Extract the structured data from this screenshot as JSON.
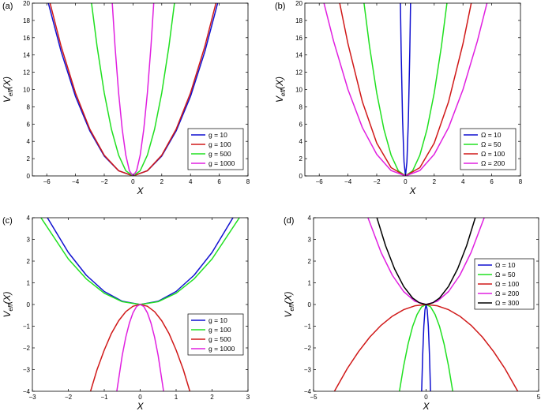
{
  "colors": {
    "blue": "#1010d0",
    "red": "#d01818",
    "green": "#20e020",
    "magenta": "#e020e0",
    "black": "#000000"
  },
  "chart_data": [
    {
      "type": "line",
      "panel_label": "(a)",
      "xlabel": "X",
      "ylabel_main": "V",
      "ylabel_sub": "eff",
      "ylabel_tail": "(X)",
      "xlim": [
        -7,
        8
      ],
      "ylim": [
        0,
        20
      ],
      "xticks": [
        -6,
        -4,
        -2,
        0,
        2,
        4,
        6,
        8
      ],
      "yticks": [
        0,
        2,
        4,
        6,
        8,
        10,
        12,
        14,
        16,
        18,
        20
      ],
      "legend_position": "lower-right",
      "series": [
        {
          "name": "g = 10",
          "color": "blue",
          "x": [
            -6,
            -5,
            -4,
            -3,
            -2,
            -1,
            0,
            1,
            2,
            3,
            4,
            5,
            6
          ],
          "y": [
            20.7,
            14.4,
            9.2,
            5.2,
            2.3,
            0.6,
            0,
            0.6,
            2.3,
            5.2,
            9.2,
            14.4,
            20.7
          ]
        },
        {
          "name": "g = 100",
          "color": "red",
          "x": [
            -5.8,
            -5,
            -4,
            -3,
            -2,
            -1,
            0,
            1,
            2,
            3,
            4,
            5,
            5.8
          ],
          "y": [
            20.2,
            15.0,
            9.6,
            5.4,
            2.4,
            0.6,
            0,
            0.6,
            2.4,
            5.4,
            9.6,
            15.0,
            20.2
          ]
        },
        {
          "name": "g = 500",
          "color": "green",
          "x": [
            -2.9,
            -2.5,
            -2,
            -1.5,
            -1,
            -0.5,
            0,
            0.5,
            1,
            1.5,
            2,
            2.5,
            2.9
          ],
          "y": [
            20.2,
            15.0,
            9.6,
            5.4,
            2.4,
            0.6,
            0,
            0.6,
            2.4,
            5.4,
            9.6,
            15.0,
            20.2
          ]
        },
        {
          "name": "g = 1000",
          "color": "magenta",
          "x": [
            -1.45,
            -1.25,
            -1,
            -0.75,
            -0.5,
            -0.25,
            0,
            0.25,
            0.5,
            0.75,
            1,
            1.25,
            1.45
          ],
          "y": [
            20.2,
            15.0,
            9.6,
            5.4,
            2.4,
            0.6,
            0,
            0.6,
            2.4,
            5.4,
            9.6,
            15.0,
            20.2
          ]
        }
      ]
    },
    {
      "type": "line",
      "panel_label": "(b)",
      "xlabel": "X",
      "ylabel_main": "V",
      "ylabel_sub": "eff",
      "ylabel_tail": "(X)",
      "xlim": [
        -7,
        8
      ],
      "ylim": [
        0,
        20
      ],
      "xticks": [
        -6,
        -4,
        -2,
        0,
        2,
        4,
        6,
        8
      ],
      "yticks": [
        0,
        2,
        4,
        6,
        8,
        10,
        12,
        14,
        16,
        18,
        20
      ],
      "legend_position": "lower-right",
      "series": [
        {
          "name": "Ω = 10",
          "color": "blue",
          "x": [
            -0.36,
            -0.3,
            -0.2,
            -0.1,
            0,
            0.1,
            0.2,
            0.3,
            0.36
          ],
          "y": [
            20.7,
            14.4,
            6.4,
            1.6,
            0,
            1.6,
            6.4,
            14.4,
            20.7
          ]
        },
        {
          "name": "Ω = 50",
          "color": "green",
          "x": [
            -2.9,
            -2.5,
            -2,
            -1.5,
            -1,
            -0.5,
            0,
            0.5,
            1,
            1.5,
            2,
            2.5,
            2.9
          ],
          "y": [
            20.2,
            15.0,
            9.6,
            5.4,
            2.4,
            0.6,
            0,
            0.6,
            2.4,
            5.4,
            9.6,
            15.0,
            20.2
          ]
        },
        {
          "name": "Ω = 100",
          "color": "red",
          "x": [
            -4.6,
            -4,
            -3,
            -2,
            -1,
            0,
            1,
            2,
            3,
            4,
            4.6
          ],
          "y": [
            20.2,
            15.3,
            8.6,
            3.8,
            0.96,
            0,
            0.96,
            3.8,
            8.6,
            15.3,
            20.2
          ]
        },
        {
          "name": "Ω = 200",
          "color": "magenta",
          "x": [
            -5.7,
            -5,
            -4,
            -3,
            -2,
            -1,
            0,
            1,
            2,
            3,
            4,
            5,
            5.7
          ],
          "y": [
            20.2,
            15.6,
            10.0,
            5.6,
            2.5,
            0.62,
            0,
            0.62,
            2.5,
            5.6,
            10.0,
            15.6,
            20.2
          ]
        }
      ]
    },
    {
      "type": "line",
      "panel_label": "(c)",
      "xlabel": "X",
      "ylabel_main": "V",
      "ylabel_sub": "eff",
      "ylabel_tail": "(X)",
      "xlim": [
        -3,
        3
      ],
      "ylim": [
        -4,
        4
      ],
      "xticks": [
        -3,
        -2,
        -1,
        0,
        1,
        2,
        3
      ],
      "yticks": [
        -4,
        -3,
        -2,
        -1,
        0,
        1,
        2,
        3,
        4
      ],
      "legend_position": "right",
      "series": [
        {
          "name": "g = 10",
          "color": "blue",
          "x": [
            -2.6,
            -2,
            -1.5,
            -1,
            -0.5,
            0,
            0.5,
            1,
            1.5,
            2,
            2.6
          ],
          "y": [
            4.05,
            2.4,
            1.35,
            0.6,
            0.15,
            0,
            0.15,
            0.6,
            1.35,
            2.4,
            4.05
          ]
        },
        {
          "name": "g = 100",
          "color": "green",
          "x": [
            -2.8,
            -2,
            -1.5,
            -1,
            -0.5,
            0,
            0.5,
            1,
            1.5,
            2,
            2.8
          ],
          "y": [
            4.1,
            2.1,
            1.18,
            0.52,
            0.13,
            0,
            0.13,
            0.52,
            1.18,
            2.1,
            4.1
          ]
        },
        {
          "name": "g = 500",
          "color": "red",
          "x": [
            -1.4,
            -1.2,
            -1,
            -0.8,
            -0.6,
            -0.4,
            -0.2,
            0,
            0.2,
            0.4,
            0.6,
            0.8,
            1,
            1.2,
            1.4
          ],
          "y": [
            -4.1,
            -3.0,
            -2.1,
            -1.33,
            -0.75,
            -0.33,
            -0.08,
            0,
            -0.08,
            -0.33,
            -0.75,
            -1.33,
            -2.1,
            -3.0,
            -4.1
          ]
        },
        {
          "name": "g = 1000",
          "color": "magenta",
          "x": [
            -0.66,
            -0.5,
            -0.4,
            -0.3,
            -0.2,
            -0.1,
            0,
            0.1,
            0.2,
            0.3,
            0.4,
            0.5,
            0.66
          ],
          "y": [
            -4.1,
            -2.35,
            -1.5,
            -0.85,
            -0.38,
            -0.09,
            0,
            -0.09,
            -0.38,
            -0.85,
            -1.5,
            -2.35,
            -4.1
          ]
        }
      ]
    },
    {
      "type": "line",
      "panel_label": "(d)",
      "xlabel": "X",
      "ylabel_main": "V",
      "ylabel_sub": "eff",
      "ylabel_tail": "(X)",
      "xlim": [
        -5,
        5
      ],
      "ylim": [
        -4,
        4
      ],
      "xticks": [
        -5,
        0,
        5
      ],
      "yticks": [
        -4,
        -3,
        -2,
        -1,
        0,
        1,
        2,
        3,
        4
      ],
      "legend_position": "upper-right",
      "series": [
        {
          "name": "Ω = 10",
          "color": "blue",
          "x": [
            -0.2,
            -0.15,
            -0.1,
            -0.05,
            0,
            0.05,
            0.1,
            0.15,
            0.2
          ],
          "y": [
            -4.1,
            -2.3,
            -1.0,
            -0.25,
            0,
            -0.25,
            -1.0,
            -2.3,
            -4.1
          ]
        },
        {
          "name": "Ω = 50",
          "color": "green",
          "x": [
            -1.2,
            -1,
            -0.8,
            -0.6,
            -0.4,
            -0.2,
            0,
            0.2,
            0.4,
            0.6,
            0.8,
            1,
            1.2
          ],
          "y": [
            -4.1,
            -2.85,
            -1.82,
            -1.02,
            -0.46,
            -0.11,
            0,
            -0.11,
            -0.46,
            -1.02,
            -1.82,
            -2.85,
            -4.1
          ]
        },
        {
          "name": "Ω = 100",
          "color": "red",
          "x": [
            -4.1,
            -3.5,
            -3,
            -2.5,
            -2,
            -1.5,
            -1,
            -0.5,
            0,
            0.5,
            1,
            1.5,
            2,
            2.5,
            3,
            3.5,
            4.1
          ],
          "y": [
            -4.05,
            -2.95,
            -2.17,
            -1.5,
            -0.96,
            -0.54,
            -0.24,
            -0.06,
            0,
            -0.06,
            -0.24,
            -0.54,
            -0.96,
            -1.5,
            -2.17,
            -2.95,
            -4.05
          ]
        },
        {
          "name": "Ω = 200",
          "color": "magenta",
          "x": [
            -2.6,
            -2,
            -1.5,
            -1,
            -0.5,
            0,
            0.5,
            1,
            1.5,
            2,
            2.6
          ],
          "y": [
            4.05,
            2.4,
            1.35,
            0.6,
            0.15,
            0,
            0.15,
            0.6,
            1.35,
            2.4,
            4.05
          ]
        },
        {
          "name": "Ω = 300",
          "color": "black",
          "x": [
            -2.2,
            -1.8,
            -1.4,
            -1,
            -0.6,
            -0.3,
            0,
            0.3,
            0.6,
            1,
            1.4,
            1.8,
            2.2
          ],
          "y": [
            4.05,
            2.71,
            1.64,
            0.84,
            0.3,
            0.08,
            0,
            0.08,
            0.3,
            0.84,
            1.64,
            2.71,
            4.05
          ]
        }
      ]
    }
  ]
}
